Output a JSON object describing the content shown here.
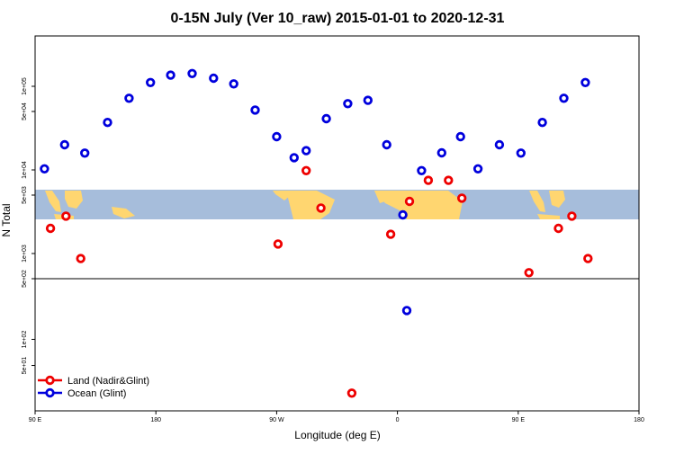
{
  "chart_data": {
    "type": "scatter",
    "title": "0-15N July (Ver 10_raw)   2015-01-01 to 2020-12-31",
    "xlabel": "Longitude (deg E)",
    "ylabel": "N Total",
    "x_axis": {
      "range_deg_east": [
        90,
        450
      ],
      "ticks": [
        {
          "value": 90,
          "label": "90 E"
        },
        {
          "value": 180,
          "label": "180"
        },
        {
          "value": 270,
          "label": "90 W"
        },
        {
          "value": 360,
          "label": "0"
        },
        {
          "value": 450,
          "label": "90 E"
        },
        {
          "value": 540,
          "label": "180"
        }
      ],
      "range_shown": [
        90,
        540
      ]
    },
    "upper_panel": {
      "scale": "log",
      "ylim": [
        500,
        400000
      ],
      "ticks": [
        {
          "value": 1000,
          "label": "1e+03"
        },
        {
          "value": 5000,
          "label": "5e+03"
        },
        {
          "value": 10000,
          "label": "1e+04"
        },
        {
          "value": 50000,
          "label": "5e+04"
        },
        {
          "value": 100000,
          "label": "1e+05"
        }
      ]
    },
    "lower_panel": {
      "scale": "log",
      "ylim": [
        15,
        500
      ],
      "ticks": [
        {
          "value": 50,
          "label": "5e+01"
        },
        {
          "value": 100,
          "label": "1e+02"
        },
        {
          "value": 500,
          "label": "5e+02"
        }
      ]
    },
    "legend_position": "bottom-left",
    "grid": false,
    "background_map": "equatorial land/ocean band",
    "colors": {
      "land": "#ee0000",
      "ocean": "#0000dd",
      "map_ocean": "#a6bddb",
      "map_land": "#ffd670"
    },
    "series": [
      {
        "name": "Land (Nadir&Glint)",
        "color": "#ee0000",
        "points": [
          {
            "lon": 101.5,
            "n": 2000
          },
          {
            "lon": 113,
            "n": 2800
          },
          {
            "lon": 124,
            "n": 870
          },
          {
            "lon": 271,
            "n": 1300
          },
          {
            "lon": 292,
            "n": 9800
          },
          {
            "lon": 303,
            "n": 3500
          },
          {
            "lon": 326,
            "n": 24
          },
          {
            "lon": 355,
            "n": 1700
          },
          {
            "lon": 369,
            "n": 4200
          },
          {
            "lon": 383,
            "n": 7500
          },
          {
            "lon": 398,
            "n": 7500
          },
          {
            "lon": 408,
            "n": 4600
          },
          {
            "lon": 458,
            "n": 590
          },
          {
            "lon": 480,
            "n": 2000
          },
          {
            "lon": 490,
            "n": 2800
          },
          {
            "lon": 502,
            "n": 870
          }
        ]
      },
      {
        "name": "Ocean (Glint)",
        "color": "#0000dd",
        "points": [
          {
            "lon": 97,
            "n": 10300
          },
          {
            "lon": 112,
            "n": 20000
          },
          {
            "lon": 127,
            "n": 15900
          },
          {
            "lon": 144,
            "n": 37000
          },
          {
            "lon": 160,
            "n": 72000
          },
          {
            "lon": 176,
            "n": 111000
          },
          {
            "lon": 191,
            "n": 136000
          },
          {
            "lon": 207,
            "n": 142000
          },
          {
            "lon": 223,
            "n": 125000
          },
          {
            "lon": 238,
            "n": 107000
          },
          {
            "lon": 254,
            "n": 52000
          },
          {
            "lon": 270,
            "n": 25000
          },
          {
            "lon": 283,
            "n": 14000
          },
          {
            "lon": 292,
            "n": 17000
          },
          {
            "lon": 307,
            "n": 41000
          },
          {
            "lon": 323,
            "n": 62000
          },
          {
            "lon": 338,
            "n": 68000
          },
          {
            "lon": 352,
            "n": 20000
          },
          {
            "lon": 364,
            "n": 2900
          },
          {
            "lon": 367,
            "n": 215
          },
          {
            "lon": 378,
            "n": 9800
          },
          {
            "lon": 393,
            "n": 16000
          },
          {
            "lon": 407,
            "n": 25000
          },
          {
            "lon": 420,
            "n": 10300
          },
          {
            "lon": 436,
            "n": 20000
          },
          {
            "lon": 452,
            "n": 15900
          },
          {
            "lon": 468,
            "n": 37000
          },
          {
            "lon": 484,
            "n": 72000
          },
          {
            "lon": 500,
            "n": 111000
          }
        ]
      }
    ]
  }
}
